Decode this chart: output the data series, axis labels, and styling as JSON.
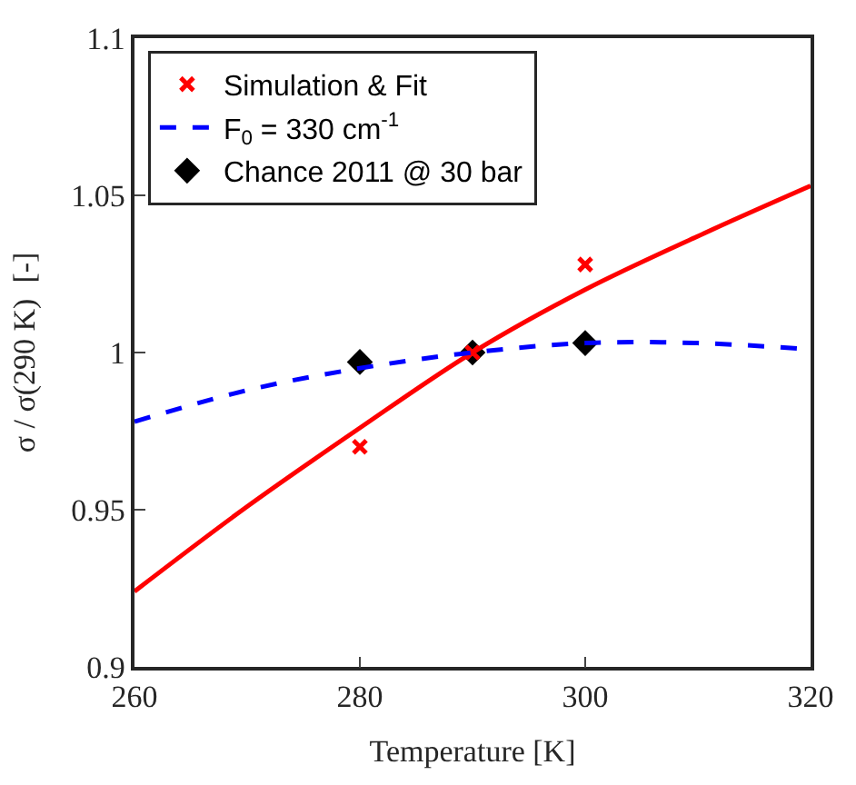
{
  "chart_data": {
    "type": "line",
    "xlabel": "Temperature [K]",
    "ylabel": "σ / σ(290 K)  [-]",
    "xlim": [
      260,
      320
    ],
    "xticks": [
      260,
      280,
      300,
      320
    ],
    "ylim": [
      0.9,
      1.1
    ],
    "yticks": [
      0.9,
      0.95,
      1,
      1.05,
      1.1
    ],
    "legend": "top left",
    "series": [
      {
        "name": "Simulation & Fit",
        "type": "scatter",
        "marker": "cross",
        "color": "#ff0000",
        "x": [
          280,
          290,
          300
        ],
        "values": [
          0.97,
          1.0,
          1.028
        ]
      },
      {
        "line_style": "solid",
        "color": "#ff0000",
        "x": [
          260,
          270,
          280,
          290,
          300,
          310,
          320
        ],
        "values": [
          0.924,
          0.951,
          0.976,
          1.0,
          1.02,
          1.037,
          1.053
        ]
      },
      {
        "name": "F$_{0}$ = 330 cm$^{-1}$",
        "type": "line",
        "line_style": "dashed",
        "color": "#0000ff",
        "x": [
          260,
          270,
          280,
          290,
          300,
          310,
          320
        ],
        "values": [
          0.978,
          0.988,
          0.995,
          1.0,
          1.003,
          1.003,
          1.001
        ]
      },
      {
        "name": "Chance 2011 @ 30 bar",
        "type": "scatter",
        "marker": "diamond",
        "color": "#000000",
        "x": [
          280,
          290,
          300
        ],
        "values": [
          0.997,
          1.0,
          1.003
        ]
      }
    ]
  }
}
